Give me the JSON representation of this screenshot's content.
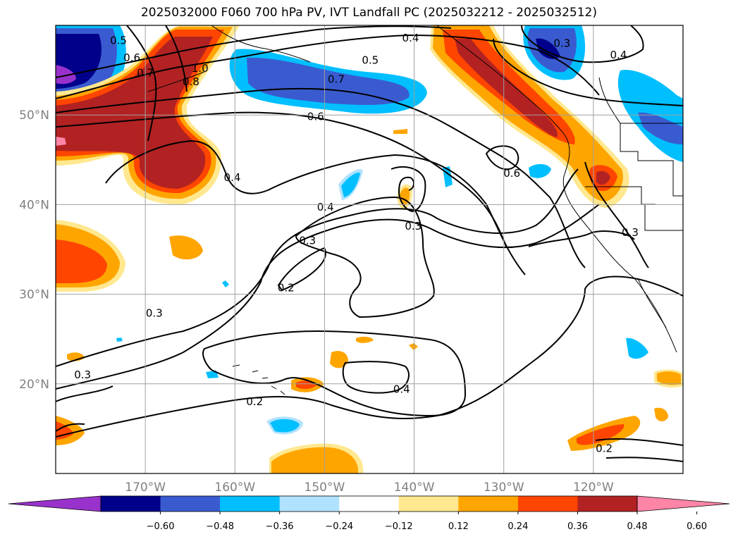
{
  "title": "2025032000 F060 700 hPa PV, IVT Landfall PC (2025032212 - 2025032512)",
  "map": {
    "lon_range": [
      -180,
      -110
    ],
    "lat_range": [
      10,
      60
    ],
    "lon_ticks": [
      {
        "lon": -170,
        "label": "170°W"
      },
      {
        "lon": -160,
        "label": "160°W"
      },
      {
        "lon": -150,
        "label": "150°W"
      },
      {
        "lon": -140,
        "label": "140°W"
      },
      {
        "lon": -130,
        "label": "130°W"
      },
      {
        "lon": -120,
        "label": "120°W"
      }
    ],
    "lat_ticks": [
      {
        "lat": 50,
        "label": "50°N"
      },
      {
        "lat": 40,
        "label": "40°N"
      },
      {
        "lat": 30,
        "label": "30°N"
      },
      {
        "lat": 20,
        "label": "20°N"
      }
    ],
    "grid": true,
    "contour_labels": [
      {
        "text": "0.5",
        "lon": -173,
        "lat": 58.3
      },
      {
        "text": "0.6",
        "lon": -171.5,
        "lat": 56.4
      },
      {
        "text": "0.7",
        "lon": -170.0,
        "lat": 54.7
      },
      {
        "text": "1.0",
        "lon": -163.9,
        "lat": 55.2
      },
      {
        "text": "0.8",
        "lon": -164.9,
        "lat": 53.7
      },
      {
        "text": "0.4",
        "lon": -140.4,
        "lat": 58.6
      },
      {
        "text": "0.5",
        "lon": -144.9,
        "lat": 56.1
      },
      {
        "text": "0.7",
        "lon": -148.7,
        "lat": 54.0
      },
      {
        "text": "0.6",
        "lon": -151.0,
        "lat": 49.8
      },
      {
        "text": "0.4",
        "lon": -160.3,
        "lat": 43.0
      },
      {
        "text": "0.4",
        "lon": -149.9,
        "lat": 39.7
      },
      {
        "text": "0.3",
        "lon": -151.9,
        "lat": 36.0
      },
      {
        "text": "0.3",
        "lon": -140.1,
        "lat": 37.6
      },
      {
        "text": "0.2",
        "lon": -154.3,
        "lat": 30.7
      },
      {
        "text": "0.3",
        "lon": -169.0,
        "lat": 27.9
      },
      {
        "text": "0.3",
        "lon": -177.0,
        "lat": 21.0
      },
      {
        "text": "0.4",
        "lon": -141.4,
        "lat": 19.4
      },
      {
        "text": "0.2",
        "lon": -157.8,
        "lat": 18.0
      },
      {
        "text": "0.6",
        "lon": -129.1,
        "lat": 43.5
      },
      {
        "text": "0.3",
        "lon": -123.5,
        "lat": 58.0
      },
      {
        "text": "0.4",
        "lon": -117.2,
        "lat": 56.7
      },
      {
        "text": "0.3",
        "lon": -115.9,
        "lat": 36.9
      },
      {
        "text": "0.2",
        "lon": -118.8,
        "lat": 12.8
      }
    ]
  },
  "colorbar": {
    "colors": [
      "#9932cc",
      "#00008b",
      "#3a5bd0",
      "#00bfff",
      "#b0e2ff",
      "#ffffff",
      "#ffe88f",
      "#ffa500",
      "#ff4500",
      "#b22222",
      "#ff85a7"
    ],
    "tick_labels": [
      "−0.60",
      "−0.48",
      "−0.36",
      "−0.24",
      "−0.12",
      "0.12",
      "0.24",
      "0.36",
      "0.48",
      "0.60"
    ]
  }
}
